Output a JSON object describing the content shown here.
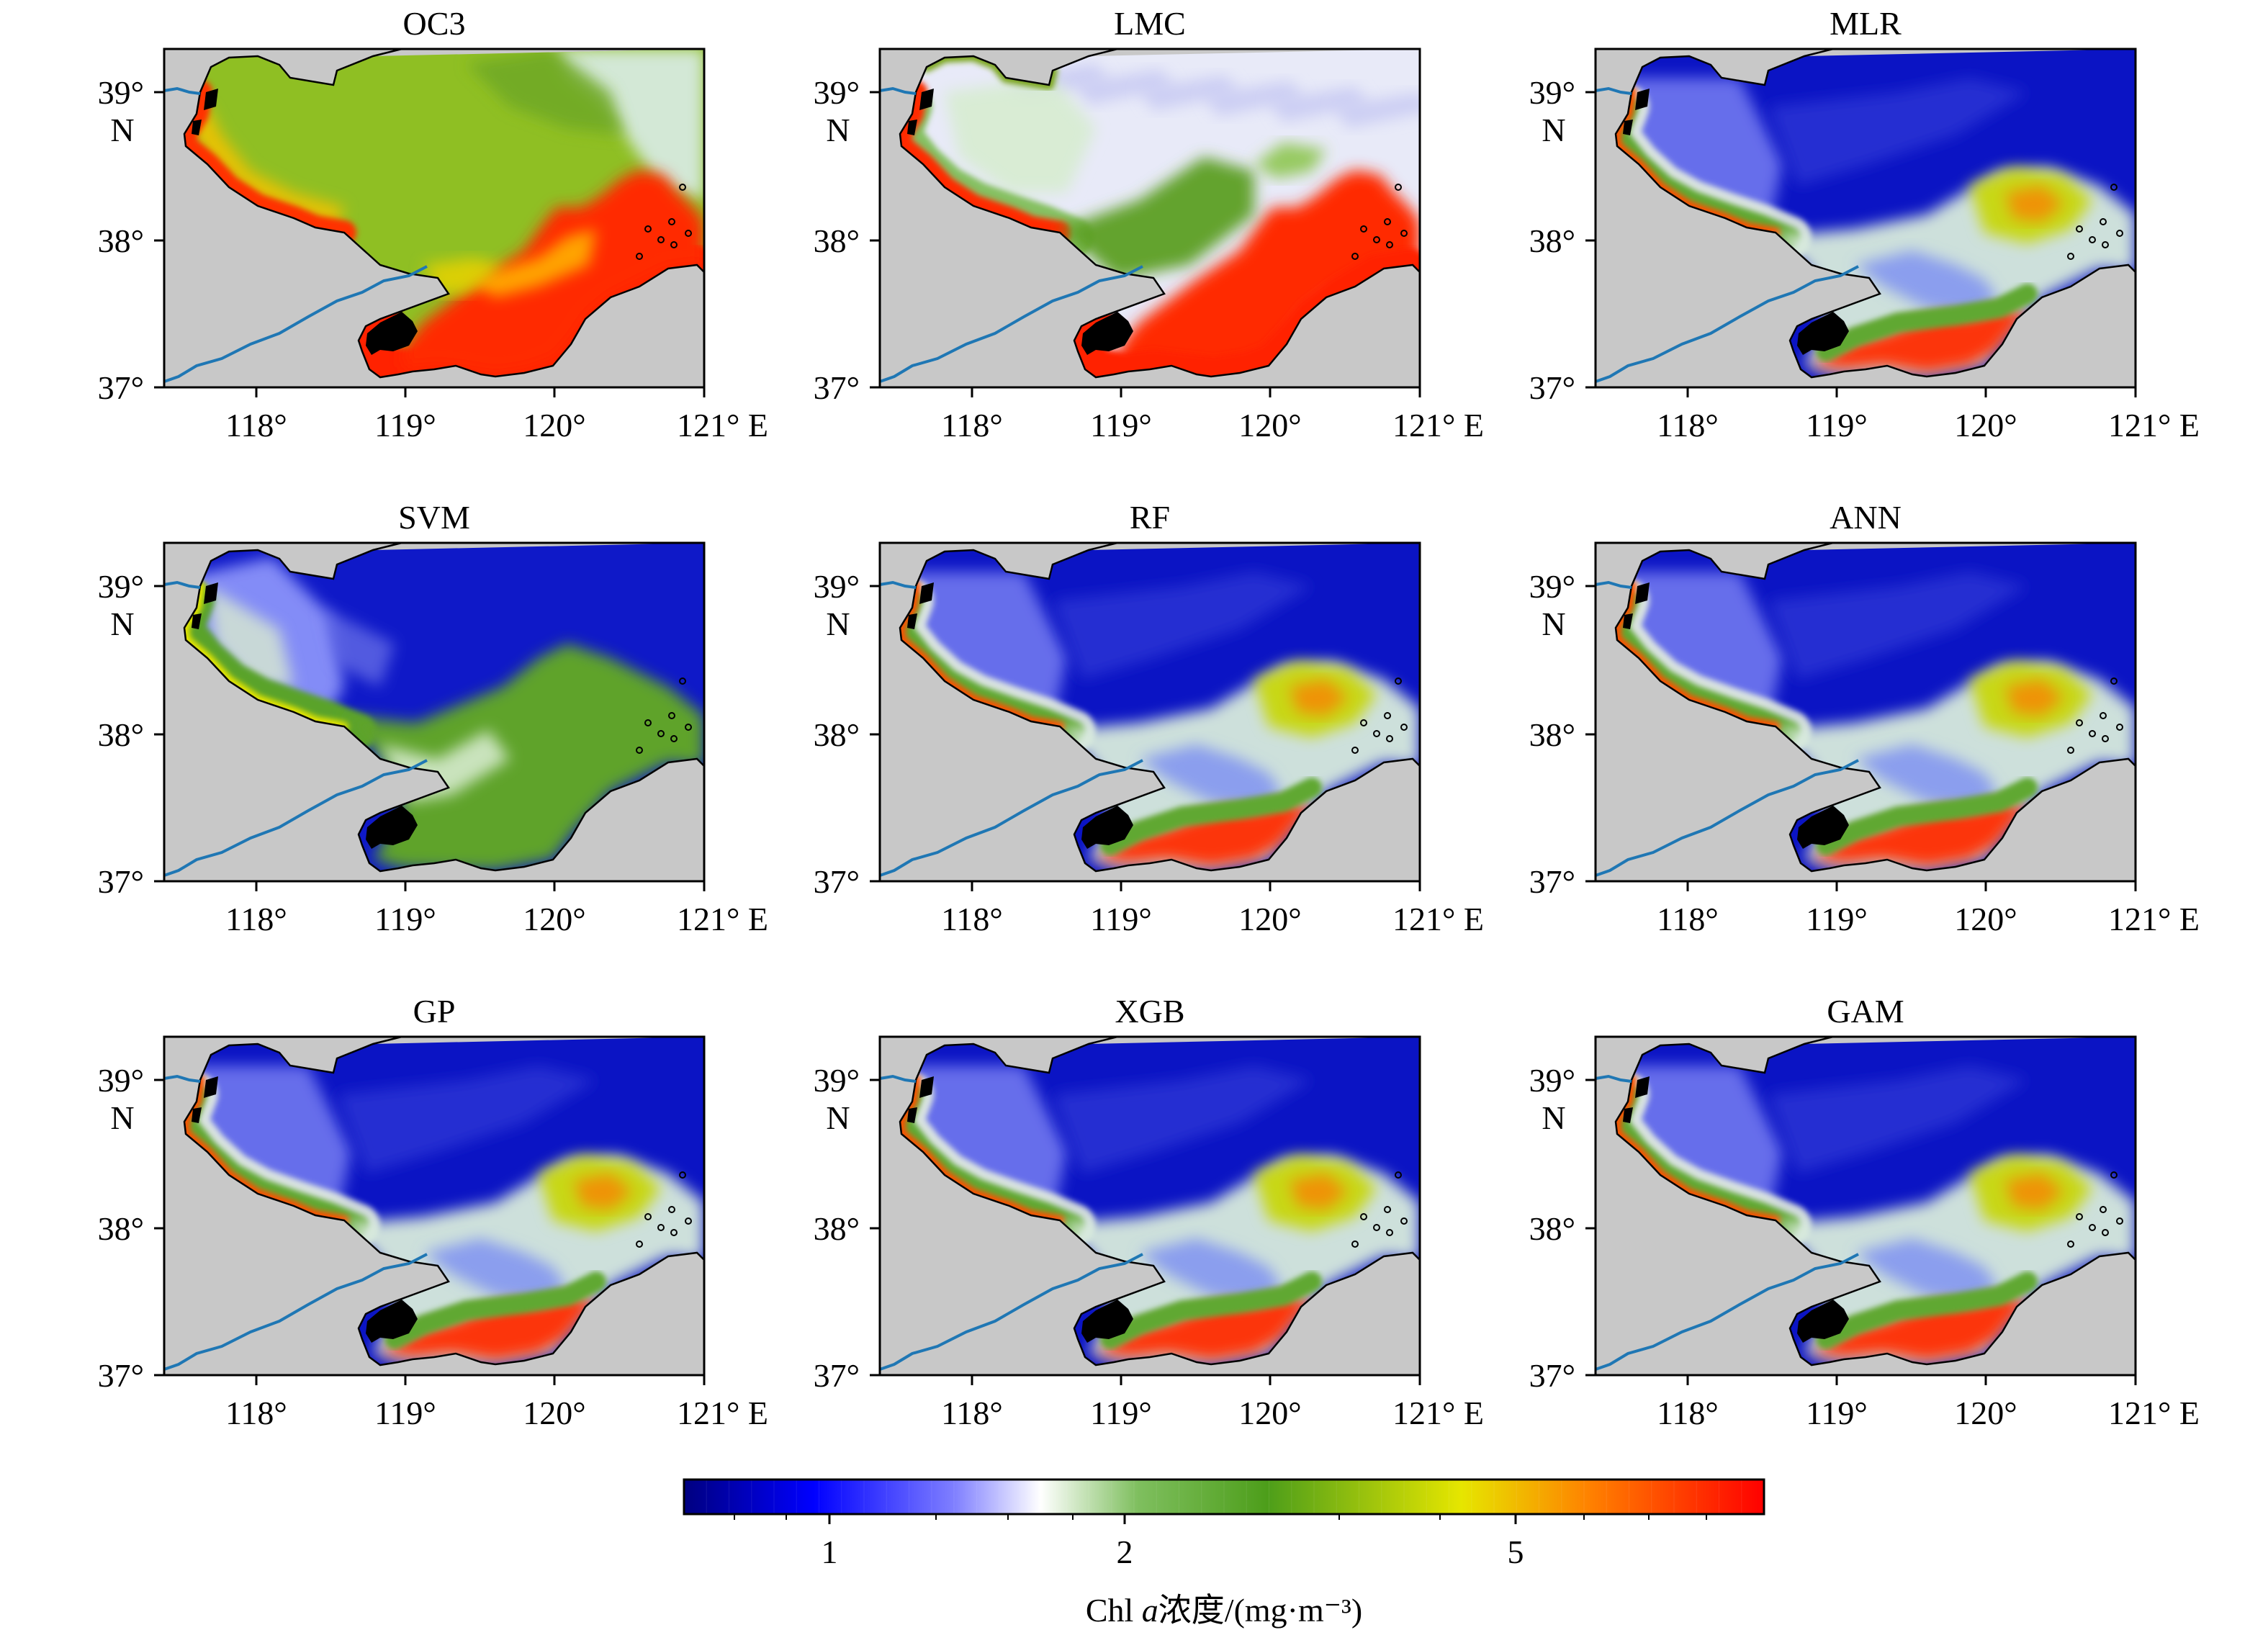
{
  "figure": {
    "panels": [
      {
        "title": "OC3",
        "style": "oc3"
      },
      {
        "title": "LMC",
        "style": "lmc"
      },
      {
        "title": "MLR",
        "style": "blue"
      },
      {
        "title": "SVM",
        "style": "svm"
      },
      {
        "title": "RF",
        "style": "blue"
      },
      {
        "title": "ANN",
        "style": "blue"
      },
      {
        "title": "GP",
        "style": "blue"
      },
      {
        "title": "XGB",
        "style": "blue"
      },
      {
        "title": "GAM",
        "style": "blue"
      }
    ],
    "lat_ticks": [
      "39°",
      "38°",
      "37°"
    ],
    "lat_unit": "N",
    "lon_ticks": [
      "118°",
      "119°",
      "120°",
      "121° E"
    ],
    "colorbar": {
      "ticks": [
        "1",
        "2",
        "5"
      ],
      "label_prefix": "Chl ",
      "label_italic": "a",
      "label_suffix": "浓度/(mg·m⁻³)",
      "colors": [
        "#000080",
        "#0000ff",
        "#7f7fff",
        "#ffffff",
        "#7fbf5f",
        "#4d9e1a",
        "#e6e600",
        "#ff8000",
        "#ff0000"
      ]
    },
    "colors": {
      "land": "#c8c8c8",
      "river": "#1f77b4",
      "island": "#000000"
    }
  }
}
